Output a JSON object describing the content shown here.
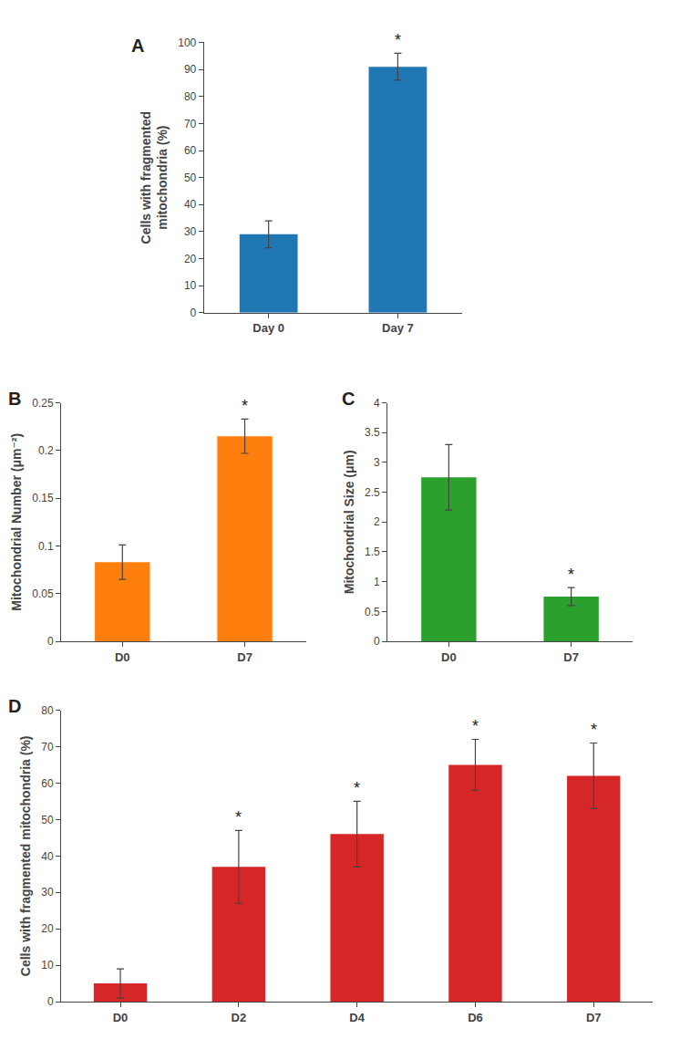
{
  "chart_data": [
    {
      "type": "bar",
      "title": "A",
      "categories": [
        "Day 0",
        "Day 7"
      ],
      "values": [
        29,
        91
      ],
      "errors": [
        5,
        5
      ],
      "ylabel": "Cells with fragmented\nmitochondria (%)",
      "ylim": [
        0,
        100
      ],
      "yticks": [
        0,
        10,
        20,
        30,
        40,
        50,
        60,
        70,
        80,
        90,
        100
      ],
      "annotations": [
        {
          "category": "Day 7",
          "text": "*"
        }
      ],
      "grid": false
    },
    {
      "type": "bar",
      "title": "B",
      "categories": [
        "D0",
        "D7"
      ],
      "values": [
        0.083,
        0.215
      ],
      "errors": [
        0.018,
        0.018
      ],
      "ylabel": "Mitochondrial Number (μm⁻²)",
      "ylim": [
        0,
        0.25
      ],
      "yticks": [
        0,
        0.05,
        0.1,
        0.15,
        0.2,
        0.25
      ],
      "annotations": [
        {
          "category": "D7",
          "text": "*"
        }
      ],
      "grid": false
    },
    {
      "type": "bar",
      "title": "C",
      "categories": [
        "D0",
        "D7"
      ],
      "values": [
        2.75,
        0.75
      ],
      "errors": [
        0.55,
        0.15
      ],
      "ylabel": "Mitochondrial Size (μm)",
      "ylim": [
        0,
        4
      ],
      "yticks": [
        0,
        0.5,
        1,
        1.5,
        2,
        2.5,
        3,
        3.5,
        4
      ],
      "annotations": [
        {
          "category": "D7",
          "text": "*"
        }
      ],
      "grid": false
    },
    {
      "type": "bar",
      "title": "D",
      "categories": [
        "D0",
        "D2",
        "D4",
        "D6",
        "D7"
      ],
      "values": [
        5,
        37,
        46,
        65,
        62
      ],
      "errors": [
        4,
        10,
        9,
        7,
        9
      ],
      "ylabel": "Cells with fragmented mitochondria (%)",
      "ylim": [
        0,
        80
      ],
      "yticks": [
        0,
        10,
        20,
        30,
        40,
        50,
        60,
        70,
        80
      ],
      "annotations": [
        {
          "category": "D2",
          "text": "*"
        },
        {
          "category": "D4",
          "text": "*"
        },
        {
          "category": "D6",
          "text": "*"
        },
        {
          "category": "D7",
          "text": "*"
        }
      ],
      "grid": false
    }
  ]
}
